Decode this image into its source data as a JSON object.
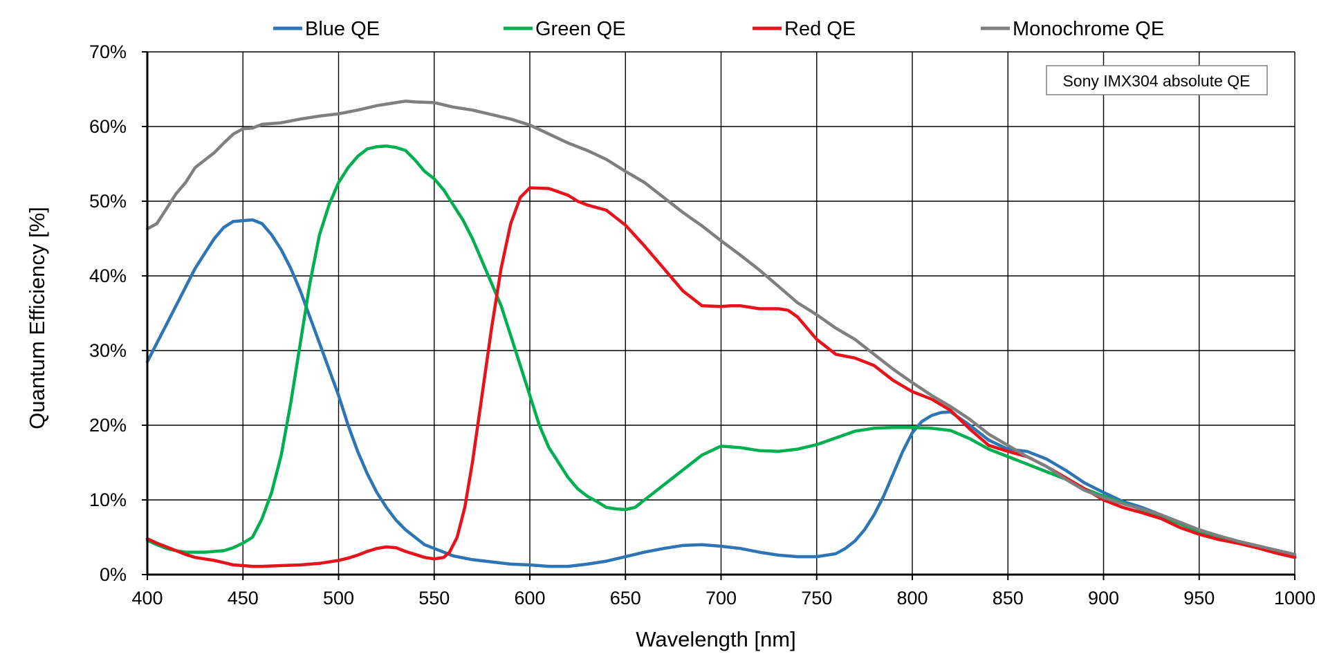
{
  "chart_data": {
    "type": "line",
    "title": "",
    "xlabel": "Wavelength [nm]",
    "ylabel": "Quantum Efficiency [%]",
    "xlim": [
      400,
      1000
    ],
    "ylim": [
      0,
      70
    ],
    "x_ticks": [
      400,
      450,
      500,
      550,
      600,
      650,
      700,
      750,
      800,
      850,
      900,
      950,
      1000
    ],
    "x_tick_labels": [
      "400",
      "450",
      "500",
      "550",
      "600",
      "650",
      "700",
      "750",
      "800",
      "850",
      "900",
      "950",
      "1000"
    ],
    "y_ticks": [
      0,
      10,
      20,
      30,
      40,
      50,
      60,
      70
    ],
    "y_tick_labels": [
      "0%",
      "10%",
      "20%",
      "30%",
      "40%",
      "50%",
      "60%",
      "70%"
    ],
    "grid": true,
    "legend_position": "top",
    "annotation": "Sony IMX304 absolute QE",
    "series": [
      {
        "name": "Blue QE",
        "color": "#2e75b6",
        "points": [
          [
            400,
            28.5
          ],
          [
            405,
            31
          ],
          [
            410,
            33.5
          ],
          [
            415,
            36
          ],
          [
            420,
            38.5
          ],
          [
            425,
            41
          ],
          [
            430,
            43
          ],
          [
            435,
            45
          ],
          [
            440,
            46.5
          ],
          [
            445,
            47.3
          ],
          [
            450,
            47.4
          ],
          [
            455,
            47.5
          ],
          [
            460,
            47
          ],
          [
            465,
            45.5
          ],
          [
            470,
            43.5
          ],
          [
            475,
            41
          ],
          [
            480,
            38
          ],
          [
            485,
            34.5
          ],
          [
            490,
            31
          ],
          [
            495,
            27.5
          ],
          [
            500,
            24
          ],
          [
            505,
            20
          ],
          [
            510,
            16.5
          ],
          [
            515,
            13.5
          ],
          [
            520,
            11
          ],
          [
            525,
            9
          ],
          [
            530,
            7.3
          ],
          [
            535,
            6
          ],
          [
            540,
            5
          ],
          [
            545,
            4
          ],
          [
            550,
            3.5
          ],
          [
            555,
            3
          ],
          [
            560,
            2.5
          ],
          [
            570,
            2
          ],
          [
            580,
            1.7
          ],
          [
            590,
            1.4
          ],
          [
            600,
            1.3
          ],
          [
            610,
            1.1
          ],
          [
            620,
            1.1
          ],
          [
            630,
            1.4
          ],
          [
            640,
            1.8
          ],
          [
            650,
            2.4
          ],
          [
            660,
            3
          ],
          [
            670,
            3.5
          ],
          [
            680,
            3.9
          ],
          [
            690,
            4
          ],
          [
            700,
            3.8
          ],
          [
            710,
            3.5
          ],
          [
            720,
            3
          ],
          [
            730,
            2.6
          ],
          [
            740,
            2.4
          ],
          [
            750,
            2.4
          ],
          [
            760,
            2.8
          ],
          [
            765,
            3.5
          ],
          [
            770,
            4.5
          ],
          [
            775,
            6
          ],
          [
            780,
            8
          ],
          [
            785,
            10.5
          ],
          [
            790,
            13.5
          ],
          [
            795,
            16.5
          ],
          [
            800,
            19
          ],
          [
            805,
            20.5
          ],
          [
            810,
            21.3
          ],
          [
            815,
            21.7
          ],
          [
            820,
            21.8
          ],
          [
            830,
            20
          ],
          [
            840,
            18
          ],
          [
            850,
            16.8
          ],
          [
            860,
            16.5
          ],
          [
            870,
            15.5
          ],
          [
            880,
            14
          ],
          [
            890,
            12.3
          ],
          [
            900,
            11
          ],
          [
            910,
            9.8
          ],
          [
            920,
            9
          ],
          [
            930,
            8
          ],
          [
            940,
            6.8
          ],
          [
            950,
            5.7
          ],
          [
            960,
            4.9
          ],
          [
            970,
            4.3
          ],
          [
            980,
            3.6
          ],
          [
            990,
            3
          ],
          [
            1000,
            2.5
          ]
        ]
      },
      {
        "name": "Green QE",
        "color": "#00b050",
        "points": [
          [
            400,
            4.6
          ],
          [
            405,
            4
          ],
          [
            410,
            3.5
          ],
          [
            415,
            3.2
          ],
          [
            420,
            3
          ],
          [
            430,
            3
          ],
          [
            440,
            3.2
          ],
          [
            445,
            3.6
          ],
          [
            450,
            4.2
          ],
          [
            455,
            5
          ],
          [
            460,
            7.5
          ],
          [
            465,
            11
          ],
          [
            470,
            16
          ],
          [
            475,
            23
          ],
          [
            480,
            31
          ],
          [
            485,
            39
          ],
          [
            490,
            45.5
          ],
          [
            495,
            49.5
          ],
          [
            500,
            52.5
          ],
          [
            505,
            54.5
          ],
          [
            510,
            56
          ],
          [
            515,
            57
          ],
          [
            520,
            57.3
          ],
          [
            525,
            57.4
          ],
          [
            530,
            57.2
          ],
          [
            535,
            56.8
          ],
          [
            540,
            55.5
          ],
          [
            545,
            54
          ],
          [
            550,
            53
          ],
          [
            555,
            51.5
          ],
          [
            560,
            49.5
          ],
          [
            565,
            47.5
          ],
          [
            570,
            45
          ],
          [
            575,
            42
          ],
          [
            580,
            39
          ],
          [
            585,
            36
          ],
          [
            590,
            32
          ],
          [
            595,
            28
          ],
          [
            600,
            24
          ],
          [
            605,
            20
          ],
          [
            610,
            17
          ],
          [
            615,
            15
          ],
          [
            620,
            13
          ],
          [
            625,
            11.5
          ],
          [
            630,
            10.5
          ],
          [
            635,
            9.8
          ],
          [
            640,
            9
          ],
          [
            645,
            8.8
          ],
          [
            650,
            8.7
          ],
          [
            655,
            9
          ],
          [
            660,
            10
          ],
          [
            670,
            12
          ],
          [
            680,
            14
          ],
          [
            690,
            16
          ],
          [
            700,
            17.2
          ],
          [
            710,
            17
          ],
          [
            720,
            16.6
          ],
          [
            730,
            16.5
          ],
          [
            740,
            16.8
          ],
          [
            750,
            17.4
          ],
          [
            760,
            18.3
          ],
          [
            770,
            19.2
          ],
          [
            780,
            19.6
          ],
          [
            790,
            19.7
          ],
          [
            800,
            19.7
          ],
          [
            810,
            19.6
          ],
          [
            820,
            19.3
          ],
          [
            830,
            18.2
          ],
          [
            840,
            16.8
          ],
          [
            850,
            15.8
          ],
          [
            860,
            14.8
          ],
          [
            870,
            13.8
          ],
          [
            880,
            12.8
          ],
          [
            890,
            11.5
          ],
          [
            900,
            10.5
          ],
          [
            910,
            9.6
          ],
          [
            920,
            8.7
          ],
          [
            930,
            7.8
          ],
          [
            940,
            6.8
          ],
          [
            950,
            5.8
          ],
          [
            960,
            5
          ],
          [
            970,
            4.4
          ],
          [
            980,
            3.7
          ],
          [
            990,
            3.1
          ],
          [
            1000,
            2.6
          ]
        ]
      },
      {
        "name": "Red QE",
        "color": "#e8121a",
        "points": [
          [
            400,
            4.8
          ],
          [
            405,
            4.2
          ],
          [
            410,
            3.7
          ],
          [
            415,
            3.2
          ],
          [
            420,
            2.7
          ],
          [
            425,
            2.3
          ],
          [
            430,
            2.1
          ],
          [
            435,
            1.9
          ],
          [
            440,
            1.6
          ],
          [
            445,
            1.3
          ],
          [
            450,
            1.2
          ],
          [
            455,
            1.1
          ],
          [
            460,
            1.1
          ],
          [
            470,
            1.2
          ],
          [
            480,
            1.3
          ],
          [
            490,
            1.5
          ],
          [
            500,
            1.9
          ],
          [
            505,
            2.2
          ],
          [
            510,
            2.6
          ],
          [
            515,
            3.1
          ],
          [
            520,
            3.5
          ],
          [
            525,
            3.7
          ],
          [
            530,
            3.6
          ],
          [
            535,
            3.1
          ],
          [
            540,
            2.7
          ],
          [
            545,
            2.3
          ],
          [
            550,
            2.1
          ],
          [
            555,
            2.3
          ],
          [
            558,
            3
          ],
          [
            562,
            5
          ],
          [
            566,
            9
          ],
          [
            570,
            15
          ],
          [
            575,
            24
          ],
          [
            580,
            33
          ],
          [
            585,
            41
          ],
          [
            590,
            47
          ],
          [
            595,
            50.5
          ],
          [
            600,
            51.8
          ],
          [
            610,
            51.7
          ],
          [
            620,
            50.8
          ],
          [
            625,
            50
          ],
          [
            630,
            49.5
          ],
          [
            640,
            48.8
          ],
          [
            650,
            46.8
          ],
          [
            660,
            44
          ],
          [
            670,
            41
          ],
          [
            680,
            38
          ],
          [
            690,
            36
          ],
          [
            700,
            35.9
          ],
          [
            705,
            36
          ],
          [
            710,
            36
          ],
          [
            720,
            35.6
          ],
          [
            730,
            35.6
          ],
          [
            735,
            35.4
          ],
          [
            740,
            34.5
          ],
          [
            750,
            31.5
          ],
          [
            760,
            29.5
          ],
          [
            770,
            29
          ],
          [
            780,
            28
          ],
          [
            790,
            26
          ],
          [
            800,
            24.5
          ],
          [
            810,
            23.5
          ],
          [
            820,
            22
          ],
          [
            830,
            19.5
          ],
          [
            840,
            17.3
          ],
          [
            850,
            16.5
          ],
          [
            860,
            15.8
          ],
          [
            870,
            14.5
          ],
          [
            880,
            13
          ],
          [
            890,
            11.5
          ],
          [
            900,
            10
          ],
          [
            910,
            9
          ],
          [
            920,
            8.3
          ],
          [
            930,
            7.5
          ],
          [
            940,
            6.3
          ],
          [
            950,
            5.4
          ],
          [
            960,
            4.7
          ],
          [
            970,
            4.2
          ],
          [
            980,
            3.6
          ],
          [
            990,
            2.9
          ],
          [
            1000,
            2.3
          ]
        ]
      },
      {
        "name": "Monochrome QE",
        "color": "#7f7f7f",
        "points": [
          [
            400,
            46.3
          ],
          [
            405,
            47
          ],
          [
            410,
            49
          ],
          [
            415,
            51
          ],
          [
            420,
            52.5
          ],
          [
            425,
            54.5
          ],
          [
            430,
            55.5
          ],
          [
            435,
            56.5
          ],
          [
            440,
            57.8
          ],
          [
            445,
            59
          ],
          [
            450,
            59.7
          ],
          [
            455,
            59.8
          ],
          [
            460,
            60.3
          ],
          [
            470,
            60.5
          ],
          [
            480,
            61
          ],
          [
            490,
            61.4
          ],
          [
            500,
            61.7
          ],
          [
            510,
            62.2
          ],
          [
            520,
            62.8
          ],
          [
            530,
            63.2
          ],
          [
            535,
            63.4
          ],
          [
            540,
            63.3
          ],
          [
            550,
            63.2
          ],
          [
            560,
            62.6
          ],
          [
            570,
            62.2
          ],
          [
            580,
            61.6
          ],
          [
            590,
            61
          ],
          [
            600,
            60.2
          ],
          [
            610,
            59
          ],
          [
            620,
            57.8
          ],
          [
            630,
            56.8
          ],
          [
            640,
            55.6
          ],
          [
            650,
            54
          ],
          [
            660,
            52.5
          ],
          [
            670,
            50.5
          ],
          [
            680,
            48.5
          ],
          [
            690,
            46.7
          ],
          [
            700,
            44.7
          ],
          [
            710,
            42.8
          ],
          [
            720,
            40.8
          ],
          [
            730,
            38.6
          ],
          [
            740,
            36.4
          ],
          [
            750,
            34.8
          ],
          [
            760,
            33
          ],
          [
            770,
            31.5
          ],
          [
            780,
            29.5
          ],
          [
            790,
            27.5
          ],
          [
            800,
            25.7
          ],
          [
            810,
            24
          ],
          [
            820,
            22.5
          ],
          [
            830,
            20.8
          ],
          [
            840,
            18.8
          ],
          [
            850,
            17.3
          ],
          [
            860,
            15.8
          ],
          [
            870,
            14.5
          ],
          [
            880,
            12.8
          ],
          [
            890,
            11.3
          ],
          [
            900,
            10.3
          ],
          [
            910,
            9.5
          ],
          [
            920,
            8.8
          ],
          [
            930,
            8
          ],
          [
            940,
            7
          ],
          [
            950,
            6
          ],
          [
            960,
            5.2
          ],
          [
            970,
            4.5
          ],
          [
            980,
            3.9
          ],
          [
            990,
            3.3
          ],
          [
            1000,
            2.7
          ]
        ]
      }
    ]
  }
}
